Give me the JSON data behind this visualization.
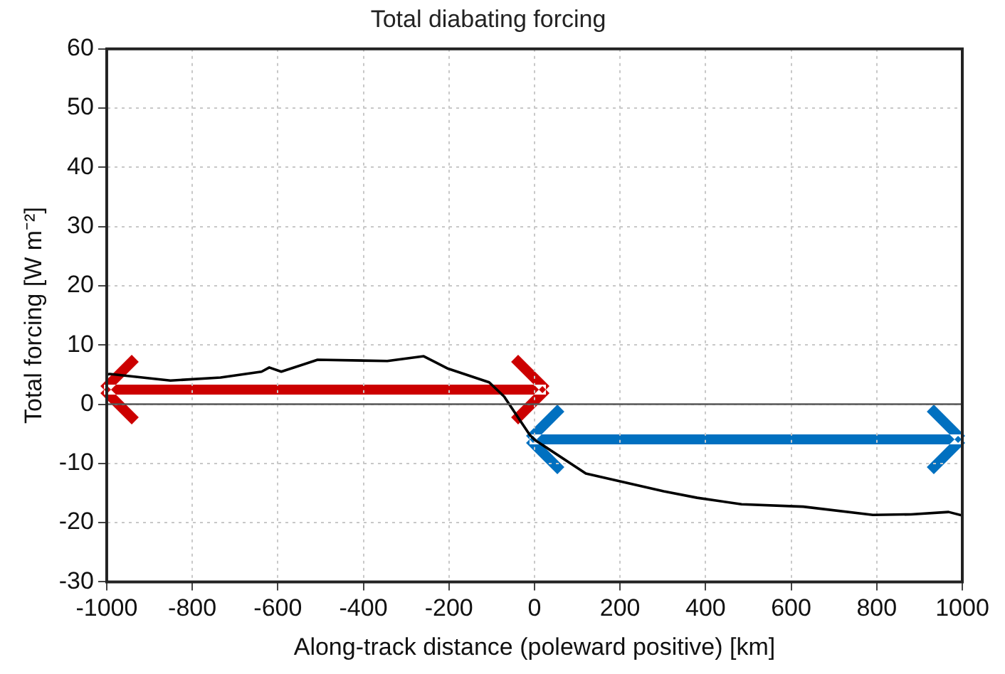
{
  "chart_data": {
    "type": "line",
    "title": "Total diabating forcing",
    "xlabel": "Along-track distance (poleward positive) [km]",
    "ylabel": "Total forcing [W m⁻²]",
    "x": [
      -1000,
      -993,
      -851,
      -734,
      -638,
      -620,
      -592,
      -507,
      -344,
      -259,
      -202,
      -106,
      -71,
      -35,
      -11,
      0,
      120,
      302,
      380,
      484,
      628,
      791,
      880,
      968,
      1000
    ],
    "series": [
      {
        "color": "#000000",
        "values": [
          5,
          5.1,
          4,
          4.5,
          5.5,
          6.2,
          5.5,
          7.5,
          7.3,
          8.1,
          6,
          3.7,
          1.3,
          -2.6,
          -5.2,
          -6,
          -11.7,
          -14.7,
          -15.8,
          -16.9,
          -17.3,
          -18.7,
          -18.6,
          -18.2,
          -18.8
        ]
      }
    ],
    "xlim": [
      -1000,
      1000
    ],
    "xticks": [
      -1000,
      -800,
      -600,
      -400,
      -200,
      0,
      200,
      400,
      600,
      800,
      1000
    ],
    "ylim": [
      -30,
      60
    ],
    "yticks": [
      -30,
      -20,
      -10,
      0,
      10,
      20,
      30,
      40,
      50,
      60
    ],
    "grid": true,
    "legend": false,
    "marker": "none",
    "line_style": "solid",
    "ref_lines": [
      {
        "axis": "y",
        "value": 0,
        "color": "#555555"
      }
    ]
  }
}
